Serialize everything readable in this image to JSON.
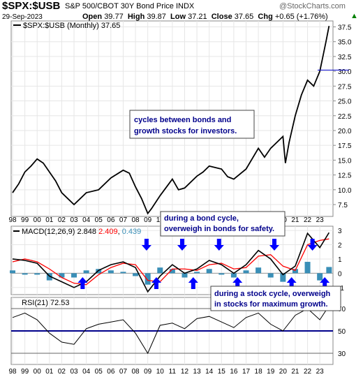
{
  "header": {
    "symbol": "$SPX:$USB",
    "name": "S&P 500/CBOT 30Y Bond Price INDX",
    "brand": "@StockCharts.com",
    "date": "29-Sep-2023",
    "ohlc": "Open 39.77  High 39.87  Low 37.21  Close 37.65  Chg +0.65 (+1.76%)",
    "ohlc_parts": {
      "open_label": "Open",
      "open": "39.77",
      "high_label": "High",
      "high": "39.87",
      "low_label": "Low",
      "low": "37.21",
      "close_label": "Close",
      "close": "37.65",
      "chg_label": "Chg",
      "chg": "+0.65 (+1.76%)"
    },
    "up_arrow_color": "#008000"
  },
  "colors": {
    "price_line": "#000000",
    "macd_signal": "#ff0000",
    "macd_line": "#000000",
    "histogram": "#3a8fb7",
    "arrow": "#0000ff",
    "last_price_line": "#0000cc",
    "rsi_50": "#00008b",
    "annotation_text": "#00008b"
  },
  "price_legend": {
    "label": "$SPX:$USB (Monthly) 37.65"
  },
  "macd_legend": {
    "label": "MACD(12,26,9)",
    "v1": "2.848",
    "v2": "2.409",
    "v3": "0.439"
  },
  "rsi_legend": {
    "label": "RSI(21) 72.53"
  },
  "annotations": {
    "a1_l1": "cycles between bonds and",
    "a1_l2": "growth stocks for investors.",
    "a2_l1": "during a bond cycle,",
    "a2_l2": "overweigh in bonds for safety.",
    "a3_l1": "during a stock cycle, overweigh",
    "a3_l2": "in stocks for maximum growth."
  },
  "x_labels": [
    "98",
    "99",
    "00",
    "01",
    "02",
    "03",
    "04",
    "05",
    "06",
    "07",
    "08",
    "09",
    "10",
    "11",
    "12",
    "13",
    "14",
    "15",
    "16",
    "17",
    "18",
    "19",
    "20",
    "21",
    "22",
    "23"
  ],
  "chart_data": [
    {
      "type": "line",
      "title": "$SPX:$USB (Monthly) 37.65",
      "x": [
        "1998",
        "1998.5",
        "1999",
        "1999.5",
        "2000",
        "2000.5",
        "2001",
        "2001.5",
        "2002",
        "2002.5",
        "2003",
        "2003.5",
        "2004",
        "2005",
        "2006",
        "2007",
        "2007.5",
        "2008",
        "2008.5",
        "2009",
        "2009.3",
        "2010",
        "2011",
        "2011.5",
        "2012",
        "2013",
        "2013.5",
        "2014",
        "2015",
        "2015.5",
        "2016",
        "2017",
        "2018",
        "2018.5",
        "2019",
        "2020",
        "2020.2",
        "2020.5",
        "2021",
        "2021.5",
        "2022",
        "2022.5",
        "2023",
        "2023.3",
        "2023.5",
        "2023.75"
      ],
      "values": [
        9.5,
        11,
        13,
        14,
        15.2,
        14.5,
        13,
        11.5,
        9.5,
        8.5,
        7.5,
        8.5,
        9.5,
        10,
        12,
        13.3,
        12.8,
        10.5,
        8.5,
        6,
        6.8,
        9,
        11.8,
        10,
        10.3,
        12.3,
        13,
        14,
        13.5,
        12.2,
        11.8,
        13.5,
        17,
        15.5,
        17,
        19,
        14.5,
        18,
        22.5,
        26,
        28.5,
        27.5,
        30,
        33,
        35,
        37.65
      ],
      "y_ticks": [
        "7.5",
        "10.0",
        "12.5",
        "15.0",
        "17.5",
        "20.0",
        "22.5",
        "25.0",
        "27.5",
        "30.0",
        "32.5",
        "35.0",
        "37.5"
      ],
      "ylim": [
        5.5,
        38.5
      ]
    },
    {
      "type": "line",
      "title": "MACD(12,26,9)",
      "x": [
        "1998",
        "1999",
        "2000",
        "2001",
        "2002",
        "2003",
        "2004",
        "2005",
        "2006",
        "2007",
        "2008",
        "2009",
        "2010",
        "2011",
        "2012",
        "2013",
        "2014",
        "2015",
        "2016",
        "2017",
        "2018",
        "2019",
        "2020",
        "2021",
        "2022",
        "2023",
        "2023.75"
      ],
      "series": [
        {
          "name": "MACD",
          "values": [
            1.0,
            0.9,
            0.7,
            -0.2,
            -0.6,
            -1.0,
            -0.6,
            0.2,
            0.6,
            0.8,
            0.4,
            -1.3,
            -0.2,
            0.6,
            0.0,
            0.3,
            0.9,
            0.6,
            0.0,
            0.6,
            1.6,
            1.0,
            -0.1,
            0.5,
            2.8,
            1.8,
            2.848
          ]
        },
        {
          "name": "Signal",
          "values": [
            0.8,
            1.0,
            0.8,
            0.3,
            -0.3,
            -0.7,
            -0.8,
            -0.1,
            0.4,
            0.7,
            0.6,
            -0.5,
            -0.6,
            0.3,
            0.3,
            0.2,
            0.6,
            0.7,
            0.3,
            0.4,
            1.2,
            1.3,
            0.5,
            0.2,
            2.0,
            2.3,
            2.409
          ]
        },
        {
          "name": "Histogram",
          "values": [
            0.2,
            -0.1,
            -0.1,
            -0.5,
            -0.3,
            -0.3,
            0.2,
            0.3,
            0.2,
            0.1,
            -0.2,
            -0.8,
            0.4,
            0.3,
            -0.3,
            0.1,
            0.3,
            -0.1,
            -0.3,
            0.2,
            0.4,
            -0.3,
            -0.6,
            0.3,
            0.8,
            -0.5,
            0.439
          ]
        }
      ],
      "y_ticks": [
        "-1",
        "0",
        "1",
        "2",
        "3"
      ],
      "ylim": [
        -1.5,
        3.3
      ]
    },
    {
      "type": "line",
      "title": "RSI(21) 72.53",
      "x": [
        "1998",
        "1999",
        "2000",
        "2001",
        "2002",
        "2003",
        "2004",
        "2005",
        "2006",
        "2007",
        "2008",
        "2009",
        "2010",
        "2011",
        "2012",
        "2013",
        "2014",
        "2015",
        "2016",
        "2017",
        "2018",
        "2019",
        "2020",
        "2021",
        "2022",
        "2023",
        "2023.75"
      ],
      "values": [
        62,
        66,
        60,
        48,
        40,
        38,
        52,
        56,
        58,
        60,
        48,
        30,
        55,
        57,
        52,
        61,
        63,
        58,
        53,
        62,
        66,
        56,
        50,
        64,
        70,
        60,
        72.53
      ],
      "y_ticks": [
        "30",
        "50",
        "70"
      ],
      "ylim": [
        20,
        80
      ],
      "reference_lines": [
        30,
        50,
        70
      ]
    }
  ]
}
